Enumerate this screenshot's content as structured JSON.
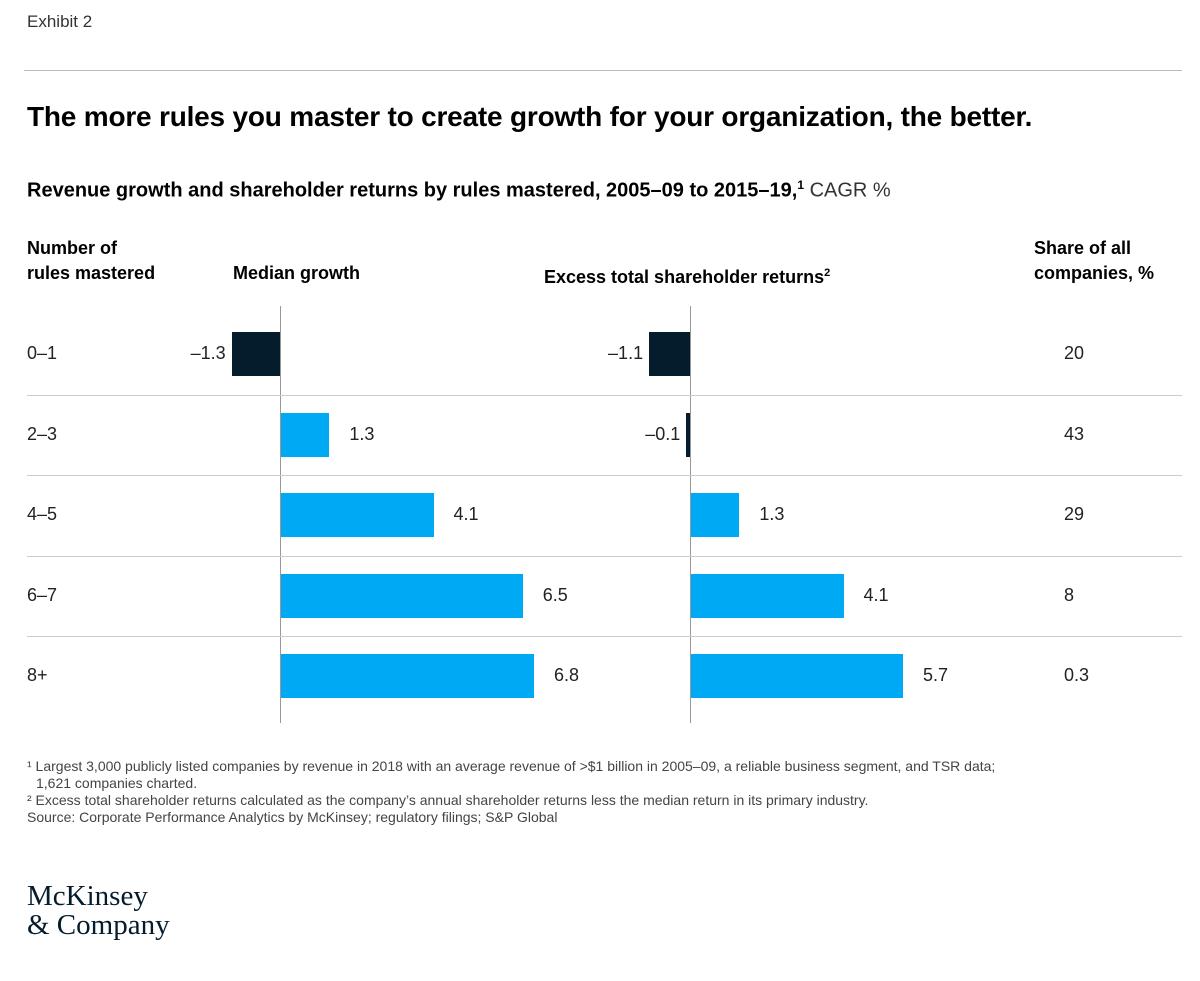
{
  "exhibit": "Exhibit 2",
  "title": "The more rules you master to create growth for your organization, the better.",
  "subtitle": "Revenue growth and shareholder returns by rules mastered, 2005–09 to 2015–19,",
  "subtitle_sup": "1",
  "subtitle_unit": " CAGR %",
  "headers": {
    "rules_line1": "Number of",
    "rules_line2": "rules mastered",
    "growth": "Median growth",
    "tsr": "Excess total shareholder returns",
    "tsr_sup": "2",
    "share_line1": "Share of all",
    "share_line2": "companies, %"
  },
  "colors": {
    "positive": "#00a9f4",
    "negative": "#051c2c"
  },
  "chart_data": {
    "type": "bar",
    "categories": [
      "0–1",
      "2–3",
      "4–5",
      "6–7",
      "8+"
    ],
    "series": [
      {
        "name": "Median growth",
        "values": [
          -1.3,
          1.3,
          4.1,
          6.5,
          6.8
        ],
        "labels": [
          "–1.3",
          "1.3",
          "4.1",
          "6.5",
          "6.8"
        ]
      },
      {
        "name": "Excess total shareholder returns",
        "values": [
          -1.1,
          -0.1,
          1.3,
          4.1,
          5.7
        ],
        "labels": [
          "–1.1",
          "–0.1",
          "1.3",
          "4.1",
          "5.7"
        ]
      }
    ],
    "share_of_companies": [
      "20",
      "43",
      "29",
      "8",
      "0.3"
    ],
    "xlabel": "",
    "ylabel": "Number of rules mastered"
  },
  "footnotes": [
    "¹ Largest 3,000 publicly listed companies by revenue in 2018 with an average revenue of >$1 billion in 2005–09, a reliable business segment, and TSR data;",
    "  1,621 companies charted.",
    "² Excess total shareholder returns calculated as the company’s annual shareholder returns less the median return in its primary industry.",
    "Source: Corporate Performance Analytics by McKinsey; regulatory filings; S&P Global"
  ],
  "logo": {
    "line1": "McKinsey",
    "line2": "& Company"
  }
}
